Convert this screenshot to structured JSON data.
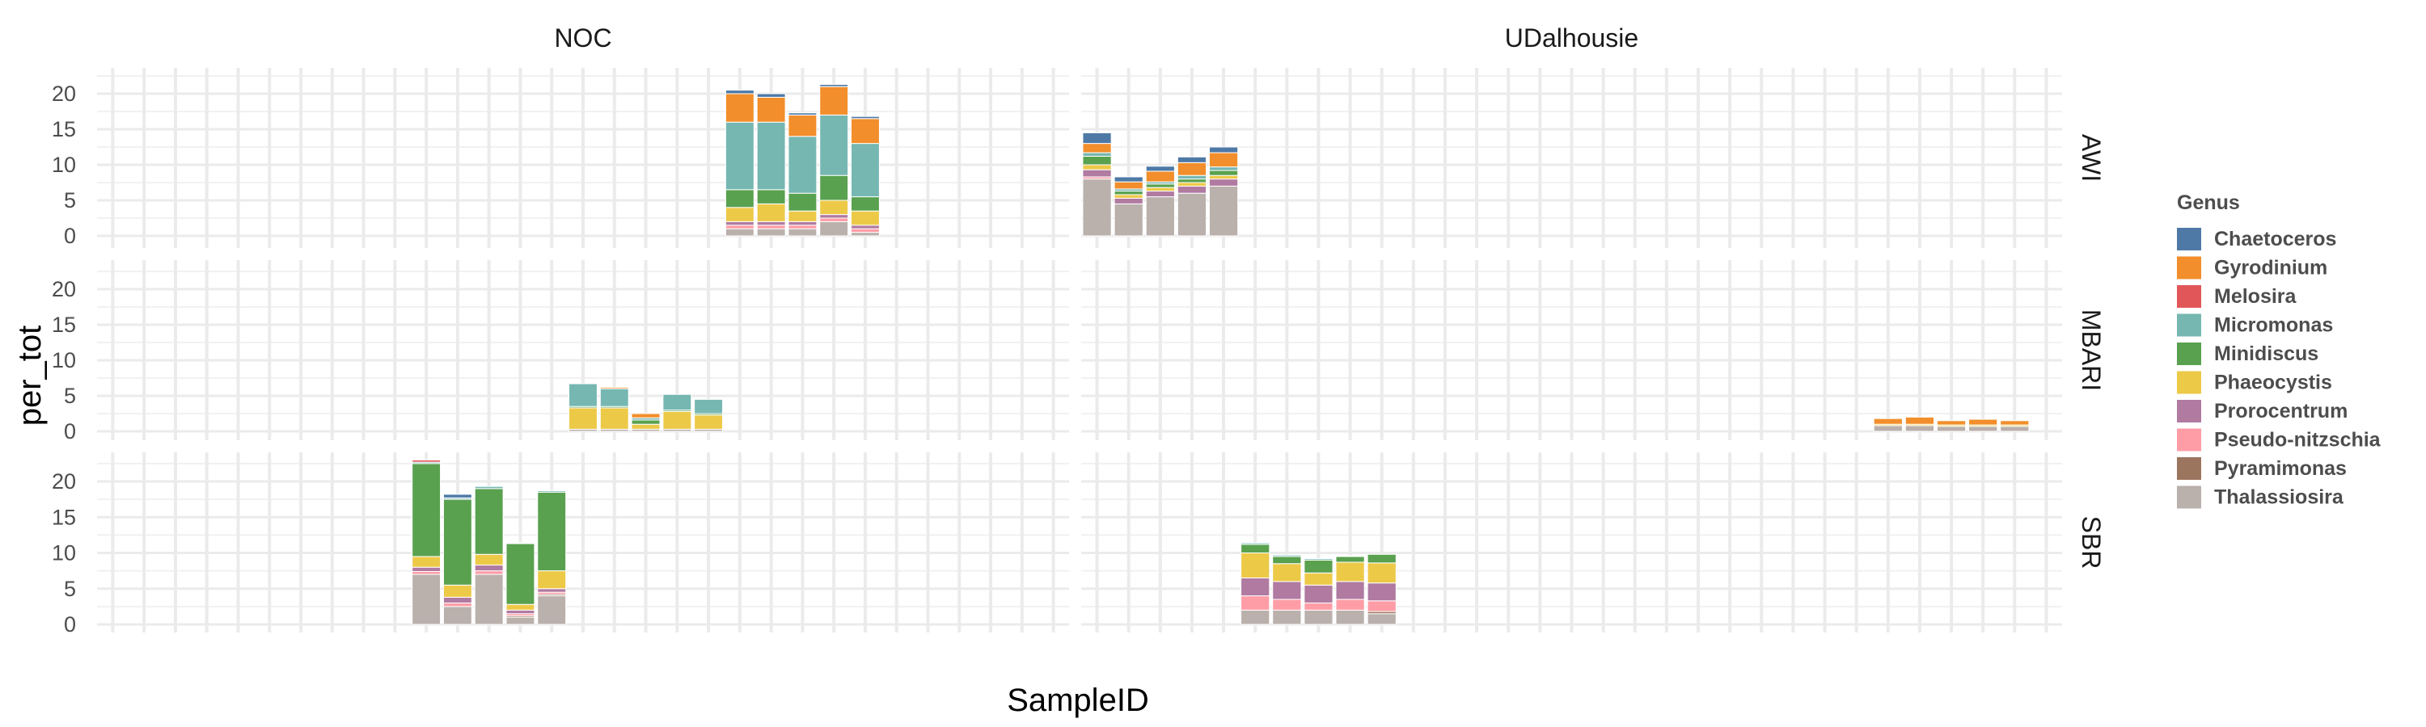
{
  "chart_data": {
    "type": "bar",
    "stacked": true,
    "facet_columns": [
      "NOC",
      "UDalhousie"
    ],
    "facet_rows": [
      "AWI",
      "MBARI",
      "SBR"
    ],
    "xlabel": "SampleID",
    "ylabel": "per_tot",
    "ylim": [
      0,
      23
    ],
    "yticks": [
      0,
      5,
      10,
      15,
      20
    ],
    "grid": true,
    "x_slots": 31,
    "legend": {
      "title": "Genus",
      "position": "right"
    },
    "genus": [
      "Chaetoceros",
      "Gyrodinium",
      "Melosira",
      "Micromonas",
      "Minidiscus",
      "Phaeocystis",
      "Prorocentrum",
      "Pseudo-nitzschia",
      "Pyramimonas",
      "Thalassiosira"
    ],
    "colors": {
      "Chaetoceros": "#4e79a7",
      "Gyrodinium": "#f28e2b",
      "Melosira": "#e15759",
      "Micromonas": "#76b7b2",
      "Minidiscus": "#59a14f",
      "Phaeocystis": "#edc948",
      "Prorocentrum": "#b07aa1",
      "Pseudo-nitzschia": "#ff9da7",
      "Pyramimonas": "#9c755f",
      "Thalassiosira": "#bab0ac"
    },
    "panels": [
      {
        "row": "AWI",
        "col": "NOC",
        "bars": [
          {
            "slot": 20,
            "values": {
              "Thalassiosira": 1.0,
              "Pseudo-nitzschia": 0.5,
              "Prorocentrum": 0.5,
              "Phaeocystis": 2.0,
              "Minidiscus": 2.5,
              "Micromonas": 9.5,
              "Gyrodinium": 4.0,
              "Chaetoceros": 0.5
            }
          },
          {
            "slot": 21,
            "values": {
              "Thalassiosira": 1.0,
              "Pseudo-nitzschia": 0.5,
              "Prorocentrum": 0.5,
              "Phaeocystis": 2.5,
              "Minidiscus": 2.0,
              "Micromonas": 9.5,
              "Gyrodinium": 3.5,
              "Chaetoceros": 0.5
            }
          },
          {
            "slot": 22,
            "values": {
              "Thalassiosira": 1.0,
              "Pseudo-nitzschia": 0.5,
              "Prorocentrum": 0.5,
              "Phaeocystis": 1.5,
              "Minidiscus": 2.5,
              "Micromonas": 8.0,
              "Gyrodinium": 3.0,
              "Chaetoceros": 0.3
            }
          },
          {
            "slot": 23,
            "values": {
              "Thalassiosira": 2.0,
              "Pseudo-nitzschia": 0.5,
              "Prorocentrum": 0.5,
              "Phaeocystis": 2.0,
              "Minidiscus": 3.5,
              "Micromonas": 8.5,
              "Gyrodinium": 4.0,
              "Chaetoceros": 0.3
            }
          },
          {
            "slot": 24,
            "values": {
              "Thalassiosira": 0.5,
              "Pseudo-nitzschia": 0.5,
              "Prorocentrum": 0.5,
              "Phaeocystis": 2.0,
              "Minidiscus": 2.0,
              "Micromonas": 7.5,
              "Gyrodinium": 3.5,
              "Chaetoceros": 0.3
            }
          }
        ]
      },
      {
        "row": "AWI",
        "col": "UDalhousie",
        "bars": [
          {
            "slot": 0,
            "values": {
              "Thalassiosira": 8.0,
              "Prorocentrum": 1.0,
              "Pseudo-nitzschia": 0.3,
              "Phaeocystis": 0.7,
              "Minidiscus": 1.2,
              "Micromonas": 0.5,
              "Gyrodinium": 1.3,
              "Chaetoceros": 1.5
            }
          },
          {
            "slot": 1,
            "values": {
              "Thalassiosira": 4.5,
              "Prorocentrum": 0.8,
              "Phaeocystis": 0.5,
              "Minidiscus": 0.5,
              "Micromonas": 0.3,
              "Gyrodinium": 1.0,
              "Chaetoceros": 0.7
            }
          },
          {
            "slot": 2,
            "values": {
              "Thalassiosira": 5.5,
              "Prorocentrum": 0.8,
              "Phaeocystis": 0.5,
              "Minidiscus": 0.5,
              "Micromonas": 0.3,
              "Gyrodinium": 1.5,
              "Chaetoceros": 0.7
            }
          },
          {
            "slot": 3,
            "values": {
              "Thalassiosira": 6.0,
              "Prorocentrum": 1.0,
              "Phaeocystis": 0.5,
              "Minidiscus": 0.5,
              "Micromonas": 0.5,
              "Gyrodinium": 1.8,
              "Chaetoceros": 0.8
            }
          },
          {
            "slot": 4,
            "values": {
              "Thalassiosira": 7.0,
              "Prorocentrum": 1.0,
              "Phaeocystis": 0.5,
              "Minidiscus": 0.7,
              "Micromonas": 0.5,
              "Gyrodinium": 2.0,
              "Chaetoceros": 0.8
            }
          }
        ]
      },
      {
        "row": "MBARI",
        "col": "NOC",
        "bars": [
          {
            "slot": 15,
            "values": {
              "Thalassiosira": 0.3,
              "Phaeocystis": 3.0,
              "Minidiscus": 0.2,
              "Micromonas": 3.2
            }
          },
          {
            "slot": 16,
            "values": {
              "Thalassiosira": 0.3,
              "Phaeocystis": 3.0,
              "Minidiscus": 0.2,
              "Micromonas": 2.5,
              "Gyrodinium": 0.2
            }
          },
          {
            "slot": 17,
            "values": {
              "Thalassiosira": 0.3,
              "Phaeocystis": 0.7,
              "Minidiscus": 0.6,
              "Micromonas": 0.3,
              "Gyrodinium": 0.6
            }
          },
          {
            "slot": 18,
            "values": {
              "Thalassiosira": 0.3,
              "Phaeocystis": 2.5,
              "Minidiscus": 0.2,
              "Micromonas": 2.2
            }
          },
          {
            "slot": 19,
            "values": {
              "Thalassiosira": 0.3,
              "Phaeocystis": 2.0,
              "Minidiscus": 0.2,
              "Micromonas": 2.0
            }
          }
        ]
      },
      {
        "row": "MBARI",
        "col": "UDalhousie",
        "bars": [
          {
            "slot": 25,
            "values": {
              "Thalassiosira": 0.8,
              "Phaeocystis": 0.2,
              "Gyrodinium": 0.8
            }
          },
          {
            "slot": 26,
            "values": {
              "Thalassiosira": 0.8,
              "Phaeocystis": 0.2,
              "Gyrodinium": 1.0
            }
          },
          {
            "slot": 27,
            "values": {
              "Thalassiosira": 0.7,
              "Phaeocystis": 0.2,
              "Gyrodinium": 0.6
            }
          },
          {
            "slot": 28,
            "values": {
              "Thalassiosira": 0.7,
              "Phaeocystis": 0.2,
              "Gyrodinium": 0.8
            }
          },
          {
            "slot": 29,
            "values": {
              "Thalassiosira": 0.7,
              "Phaeocystis": 0.2,
              "Gyrodinium": 0.6
            }
          }
        ]
      },
      {
        "row": "SBR",
        "col": "NOC",
        "bars": [
          {
            "slot": 10,
            "values": {
              "Thalassiosira": 7.0,
              "Prorocentrum": 0.6,
              "Pseudo-nitzschia": 0.4,
              "Melosira": 0.3,
              "Phaeocystis": 1.5,
              "Minidiscus": 13.0,
              "Micromonas": 0.2
            }
          },
          {
            "slot": 11,
            "values": {
              "Thalassiosira": 2.5,
              "Prorocentrum": 0.8,
              "Pseudo-nitzschia": 0.5,
              "Phaeocystis": 1.7,
              "Minidiscus": 12.0,
              "Micromonas": 0.2,
              "Chaetoceros": 0.5
            }
          },
          {
            "slot": 12,
            "values": {
              "Thalassiosira": 7.0,
              "Prorocentrum": 0.8,
              "Pseudo-nitzschia": 0.5,
              "Phaeocystis": 1.5,
              "Minidiscus": 9.2,
              "Micromonas": 0.3
            }
          },
          {
            "slot": 13,
            "values": {
              "Thalassiosira": 1.0,
              "Prorocentrum": 0.5,
              "Pseudo-nitzschia": 0.3,
              "Phaeocystis": 0.8,
              "Minidiscus": 8.5,
              "Micromonas": 0.1,
              "Pyramimonas": 0.2
            }
          },
          {
            "slot": 14,
            "values": {
              "Thalassiosira": 4.0,
              "Prorocentrum": 0.5,
              "Pseudo-nitzschia": 0.3,
              "Phaeocystis": 2.5,
              "Minidiscus": 11.0,
              "Micromonas": 0.2,
              "Pyramimonas": 0.2
            }
          }
        ]
      },
      {
        "row": "SBR",
        "col": "UDalhousie",
        "bars": [
          {
            "slot": 5,
            "values": {
              "Thalassiosira": 2.0,
              "Pseudo-nitzschia": 2.0,
              "Prorocentrum": 2.5,
              "Phaeocystis": 3.5,
              "Minidiscus": 1.2,
              "Micromonas": 0.2
            }
          },
          {
            "slot": 6,
            "values": {
              "Thalassiosira": 2.0,
              "Pseudo-nitzschia": 1.5,
              "Prorocentrum": 2.5,
              "Phaeocystis": 2.5,
              "Minidiscus": 1.0,
              "Micromonas": 0.2
            }
          },
          {
            "slot": 7,
            "values": {
              "Thalassiosira": 2.0,
              "Pseudo-nitzschia": 1.0,
              "Prorocentrum": 2.5,
              "Phaeocystis": 1.7,
              "Minidiscus": 1.8,
              "Micromonas": 0.2
            }
          },
          {
            "slot": 8,
            "values": {
              "Thalassiosira": 2.0,
              "Pseudo-nitzschia": 1.5,
              "Prorocentrum": 2.5,
              "Phaeocystis": 2.7,
              "Minidiscus": 0.8,
              "Micromonas": 0.1
            }
          },
          {
            "slot": 9,
            "values": {
              "Thalassiosira": 1.5,
              "Pseudo-nitzschia": 1.5,
              "Prorocentrum": 2.5,
              "Phaeocystis": 2.8,
              "Minidiscus": 1.2,
              "Pyramimonas": 0.3
            }
          }
        ]
      }
    ]
  }
}
